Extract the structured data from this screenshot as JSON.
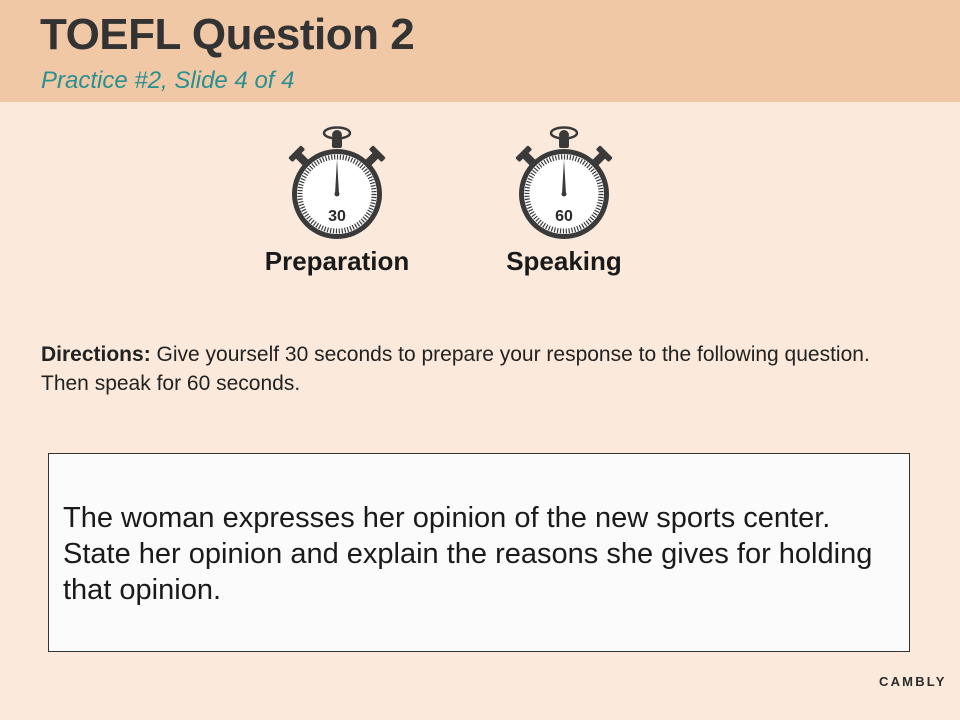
{
  "header": {
    "title": "TOEFL Question 2",
    "subtitle": "Practice #2, Slide 4 of 4"
  },
  "timers": [
    {
      "label": "Preparation",
      "seconds": "30"
    },
    {
      "label": "Speaking",
      "seconds": "60"
    }
  ],
  "directions": {
    "label": "Directions:",
    "text": "Give yourself 30 seconds to prepare your response to the following question. Then speak for 60 seconds."
  },
  "question": {
    "text": "The woman expresses her opinion of the new sports center. State her opinion and explain the reasons she gives for holding that opinion."
  },
  "brand": {
    "logo": "CAMBLY"
  },
  "colors": {
    "background": "#fbeadb",
    "header_band": "#f0c8a6",
    "subtitle_teal": "#2a8f8f",
    "icon_dark": "#3a3a3a"
  },
  "icons": [
    "stopwatch-icon",
    "stopwatch-icon"
  ]
}
